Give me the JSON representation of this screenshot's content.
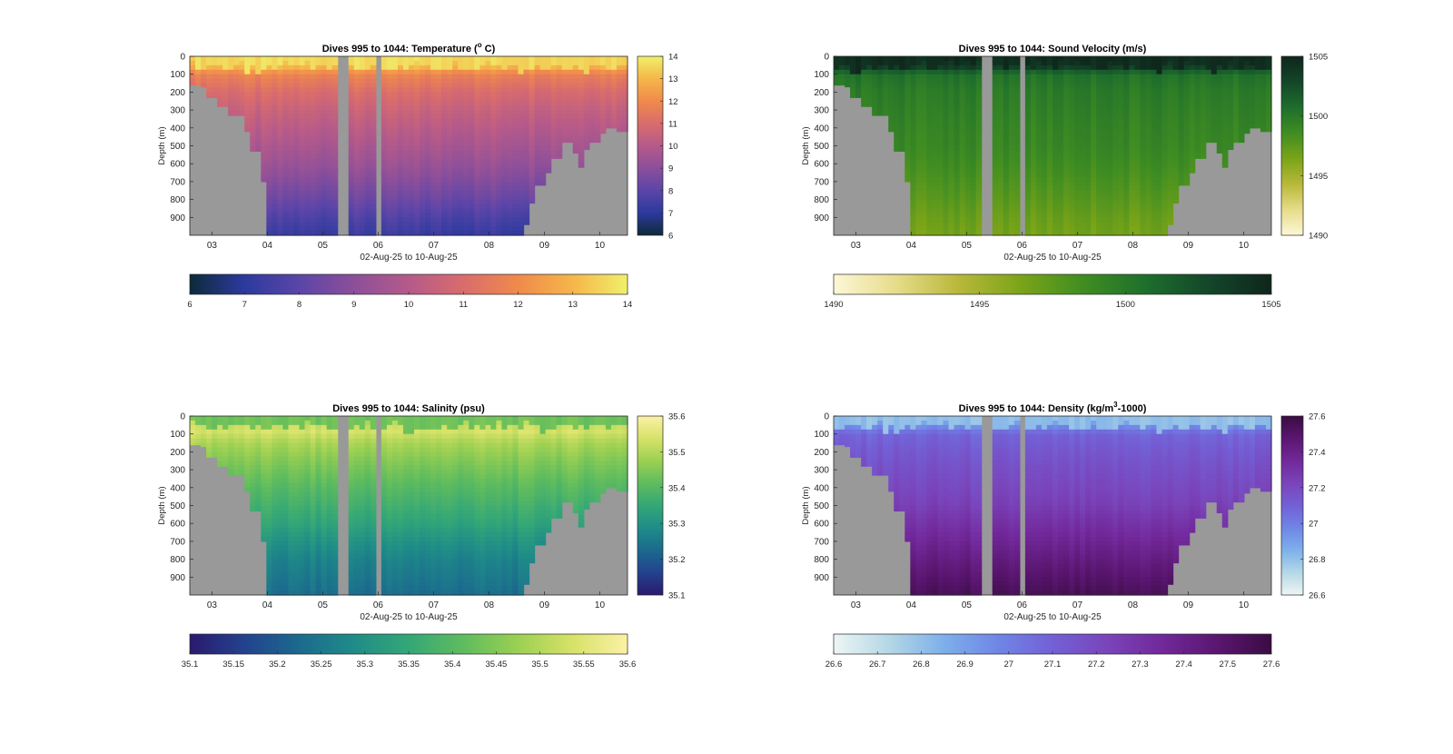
{
  "chart_data": [
    {
      "id": "temperature",
      "type": "heatmap",
      "title": "Dives 995 to 1044: Temperature (",
      "title_sup": "o",
      "title_end": " C)",
      "xlabel": "02-Aug-25 to 10-Aug-25",
      "ylabel": "Depth (m)",
      "x_ticks": [
        "03",
        "04",
        "05",
        "06",
        "07",
        "08",
        "09",
        "10"
      ],
      "y_ticks": [
        "0",
        "100",
        "200",
        "300",
        "400",
        "500",
        "600",
        "700",
        "800",
        "900"
      ],
      "ylim": [
        0,
        1000
      ],
      "colorbar": {
        "range": [
          6,
          14
        ],
        "ticks": [
          "6",
          "7",
          "8",
          "9",
          "10",
          "11",
          "12",
          "13",
          "14"
        ]
      },
      "horizontal_colorbar": {
        "range": [
          6,
          14
        ],
        "ticks": [
          "6",
          "7",
          "8",
          "9",
          "10",
          "11",
          "12",
          "13",
          "14"
        ]
      },
      "colormap": [
        "#0d2a3a",
        "#2c3a9e",
        "#5b45a8",
        "#8c4f9a",
        "#b55a8a",
        "#d96c6c",
        "#f08a4b",
        "#f5b64a",
        "#f0f06a"
      ],
      "surface_value": 13.6,
      "mixed_layer_depth_m": 70,
      "bottom_value": 7.2,
      "profile": [
        [
          0,
          13.6
        ],
        [
          60,
          13.0
        ],
        [
          100,
          11.8
        ],
        [
          200,
          11.0
        ],
        [
          300,
          10.5
        ],
        [
          400,
          10.1
        ],
        [
          500,
          9.7
        ],
        [
          600,
          9.3
        ],
        [
          700,
          8.8
        ],
        [
          800,
          8.3
        ],
        [
          900,
          7.7
        ],
        [
          1000,
          7.2
        ]
      ]
    },
    {
      "id": "sound_velocity",
      "type": "heatmap",
      "title": "Dives 995 to 1044: Sound Velocity (m/s)",
      "xlabel": "02-Aug-25 to 10-Aug-25",
      "ylabel": "Depth (m)",
      "x_ticks": [
        "03",
        "04",
        "05",
        "06",
        "07",
        "08",
        "09",
        "10"
      ],
      "y_ticks": [
        "0",
        "100",
        "200",
        "300",
        "400",
        "500",
        "600",
        "700",
        "800",
        "900"
      ],
      "ylim": [
        0,
        1000
      ],
      "colorbar": {
        "range": [
          1490,
          1505
        ],
        "ticks": [
          "1490",
          "1495",
          "1500",
          "1505"
        ]
      },
      "horizontal_colorbar": {
        "range": [
          1490,
          1505
        ],
        "ticks": [
          "1490",
          "1495",
          "1500",
          "1505"
        ]
      },
      "colormap": [
        "#fdf7d6",
        "#e6dc8a",
        "#b8b83a",
        "#7aa418",
        "#3f8d22",
        "#1e6e2c",
        "#13462a",
        "#0f261c"
      ],
      "profile": [
        [
          0,
          1504.5
        ],
        [
          60,
          1503.5
        ],
        [
          100,
          1500.5
        ],
        [
          200,
          1499.8
        ],
        [
          300,
          1499.5
        ],
        [
          400,
          1499.2
        ],
        [
          500,
          1499.0
        ],
        [
          600,
          1498.6
        ],
        [
          700,
          1498.1
        ],
        [
          800,
          1497.6
        ],
        [
          900,
          1497.0
        ],
        [
          1000,
          1496.6
        ]
      ]
    },
    {
      "id": "salinity",
      "type": "heatmap",
      "title": "Dives 995 to 1044: Salinity (psu)",
      "xlabel": "02-Aug-25 to 10-Aug-25",
      "ylabel": "Depth (m)",
      "x_ticks": [
        "03",
        "04",
        "05",
        "06",
        "07",
        "08",
        "09",
        "10"
      ],
      "y_ticks": [
        "0",
        "100",
        "200",
        "300",
        "400",
        "500",
        "600",
        "700",
        "800",
        "900"
      ],
      "ylim": [
        0,
        1000
      ],
      "colorbar": {
        "range": [
          35.1,
          35.6
        ],
        "ticks": [
          "35.1",
          "35.2",
          "35.3",
          "35.4",
          "35.5",
          "35.6"
        ]
      },
      "horizontal_colorbar": {
        "range": [
          35.1,
          35.6
        ],
        "ticks": [
          "35.1",
          "35.15",
          "35.2",
          "35.25",
          "35.3",
          "35.35",
          "35.4",
          "35.45",
          "35.5",
          "35.55",
          "35.6"
        ]
      },
      "colormap": [
        "#2a1a6e",
        "#23428e",
        "#1b6a8e",
        "#1f8c88",
        "#34a777",
        "#5fbc5e",
        "#9bd052",
        "#d7e268",
        "#fbf1a6"
      ],
      "profile": [
        [
          0,
          35.43
        ],
        [
          30,
          35.5
        ],
        [
          80,
          35.54
        ],
        [
          150,
          35.49
        ],
        [
          250,
          35.45
        ],
        [
          400,
          35.4
        ],
        [
          500,
          35.37
        ],
        [
          600,
          35.34
        ],
        [
          700,
          35.3
        ],
        [
          800,
          35.27
        ],
        [
          900,
          35.25
        ],
        [
          1000,
          35.23
        ]
      ]
    },
    {
      "id": "density",
      "type": "heatmap",
      "title": "Dives 995 to 1044: Density (kg/m",
      "title_sup": "3",
      "title_end": "-1000)",
      "xlabel": "02-Aug-25 to 10-Aug-25",
      "ylabel": "Depth (m)",
      "x_ticks": [
        "03",
        "04",
        "05",
        "06",
        "07",
        "08",
        "09",
        "10"
      ],
      "y_ticks": [
        "0",
        "100",
        "200",
        "300",
        "400",
        "500",
        "600",
        "700",
        "800",
        "900"
      ],
      "ylim": [
        0,
        1000
      ],
      "colorbar": {
        "range": [
          26.6,
          27.6
        ],
        "ticks": [
          "26.6",
          "26.8",
          "27",
          "27.2",
          "27.4",
          "27.6"
        ]
      },
      "horizontal_colorbar": {
        "range": [
          26.6,
          27.6
        ],
        "ticks": [
          "26.6",
          "26.7",
          "26.8",
          "26.9",
          "27",
          "27.1",
          "27.2",
          "27.3",
          "27.4",
          "27.5",
          "27.6"
        ]
      },
      "colormap": [
        "#eef5f5",
        "#b4d8e6",
        "#7eb0ea",
        "#6f86e6",
        "#7360d6",
        "#7a44ba",
        "#72289a",
        "#5a1670",
        "#3a0c44"
      ],
      "profile": [
        [
          0,
          26.8
        ],
        [
          40,
          26.9
        ],
        [
          100,
          27.08
        ],
        [
          200,
          27.13
        ],
        [
          300,
          27.17
        ],
        [
          400,
          27.2
        ],
        [
          500,
          27.24
        ],
        [
          600,
          27.3
        ],
        [
          700,
          27.36
        ],
        [
          800,
          27.42
        ],
        [
          900,
          27.48
        ],
        [
          1000,
          27.54
        ]
      ]
    }
  ],
  "shared": {
    "x_range_days": [
      2.6,
      10.5
    ],
    "x_tick_values_days": [
      3,
      4,
      5,
      6,
      7,
      8,
      9,
      10
    ],
    "data_gaps_days": [
      [
        5.3,
        5.45
      ],
      [
        5.93,
        6.08
      ]
    ],
    "bathymetry_left": [
      [
        2.6,
        160
      ],
      [
        2.75,
        170
      ],
      [
        2.9,
        230
      ],
      [
        3.1,
        280
      ],
      [
        3.3,
        330
      ],
      [
        3.55,
        420
      ],
      [
        3.7,
        530
      ],
      [
        3.85,
        700
      ],
      [
        4.03,
        1000
      ]
    ],
    "bathymetry_right": [
      [
        8.55,
        1000
      ],
      [
        8.6,
        940
      ],
      [
        8.7,
        820
      ],
      [
        8.8,
        720
      ],
      [
        9.0,
        650
      ],
      [
        9.15,
        570
      ],
      [
        9.35,
        480
      ],
      [
        9.55,
        540
      ],
      [
        9.65,
        620
      ],
      [
        9.75,
        520
      ],
      [
        9.85,
        480
      ],
      [
        10.0,
        430
      ],
      [
        10.15,
        400
      ],
      [
        10.3,
        420
      ],
      [
        10.5,
        380
      ]
    ],
    "background_color": "#999999"
  }
}
